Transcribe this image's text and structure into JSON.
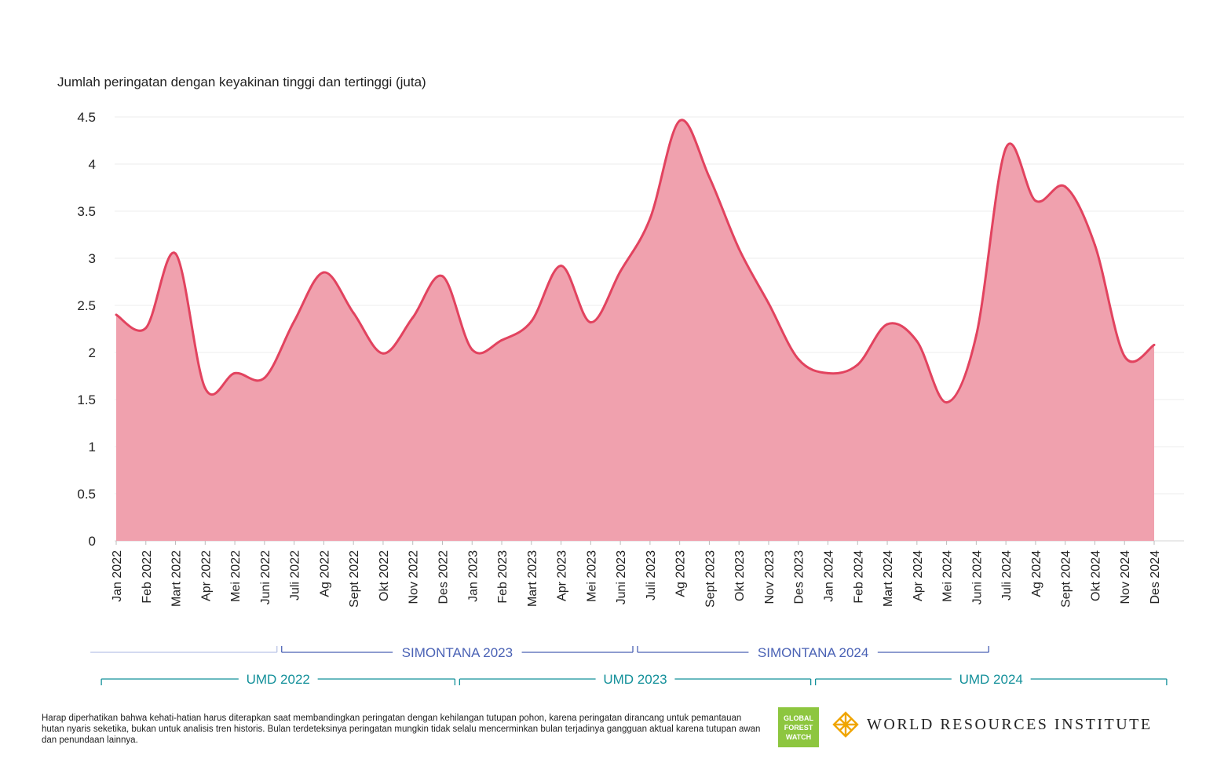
{
  "chart_data": {
    "type": "area",
    "ylabel": "Jumlah peringatan dengan keyakinan tinggi dan tertinggi (juta)",
    "ylim": [
      0,
      4.5
    ],
    "yticks": [
      "0",
      "0.5",
      "1",
      "1.5",
      "2",
      "2.5",
      "3",
      "3.5",
      "4",
      "4.5"
    ],
    "categories": [
      "Jan 2022",
      "Feb 2022",
      "Mart 2022",
      "Apr 2022",
      "Mei 2022",
      "Juni 2022",
      "Juli 2022",
      "Ag 2022",
      "Sept 2022",
      "Okt 2022",
      "Nov 2022",
      "Des 2022",
      "Jan 2023",
      "Feb 2023",
      "Mart 2023",
      "Apr 2023",
      "Mei 2023",
      "Juni 2023",
      "Juli 2023",
      "Ag 2023",
      "Sept 2023",
      "Okt 2023",
      "Nov 2023",
      "Des 2023",
      "Jan 2024",
      "Feb 2024",
      "Mart 2024",
      "Apr 2024",
      "Mei 2024",
      "Juni 2024",
      "Juli 2024",
      "Ag 2024",
      "Sept 2024",
      "Okt 2024",
      "Nov 2024",
      "Des 2024"
    ],
    "values": [
      2.4,
      2.26,
      3.05,
      1.62,
      1.78,
      1.73,
      2.33,
      2.85,
      2.42,
      1.99,
      2.37,
      2.81,
      2.03,
      2.13,
      2.33,
      2.92,
      2.32,
      2.86,
      3.42,
      4.46,
      3.86,
      3.1,
      2.52,
      1.93,
      1.78,
      1.87,
      2.3,
      2.12,
      1.47,
      2.18,
      4.17,
      3.61,
      3.76,
      3.14,
      1.96,
      2.08
    ],
    "colors": {
      "fill": "#f0a1ae",
      "line": "#e2435f",
      "umd": "#13909a",
      "simontana": "#4a62b5",
      "simontana_faint": "#b9c4e6"
    },
    "brackets": [
      {
        "label": "",
        "row": "simontana",
        "start": 0,
        "end": 5,
        "faint": true
      },
      {
        "label": "SIMONTANA 2023",
        "row": "simontana",
        "start": 6,
        "end": 17
      },
      {
        "label": "SIMONTANA 2024",
        "row": "simontana",
        "start": 18,
        "end": 29
      },
      {
        "label": "UMD 2022",
        "row": "umd",
        "start": 0,
        "end": 11
      },
      {
        "label": "UMD 2023",
        "row": "umd",
        "start": 12,
        "end": 23
      },
      {
        "label": "UMD 2024",
        "row": "umd",
        "start": 24,
        "end": 35
      }
    ]
  },
  "footnote": "Harap diperhatikan bahwa kehati-hatian harus diterapkan saat membandingkan peringatan dengan kehilangan tutupan pohon, karena peringatan dirancang untuk pemantauan hutan nyaris seketika, bukan untuk analisis tren historis. Bulan terdeteksinya peringatan mungkin tidak selalu mencerminkan bulan terjadinya gangguan aktual karena tutupan awan dan penundaan lainnya.",
  "logos": {
    "gfw_line1": "GLOBAL",
    "gfw_line2": "FOREST",
    "gfw_line3": "WATCH",
    "wri": "WORLD RESOURCES INSTITUTE"
  }
}
